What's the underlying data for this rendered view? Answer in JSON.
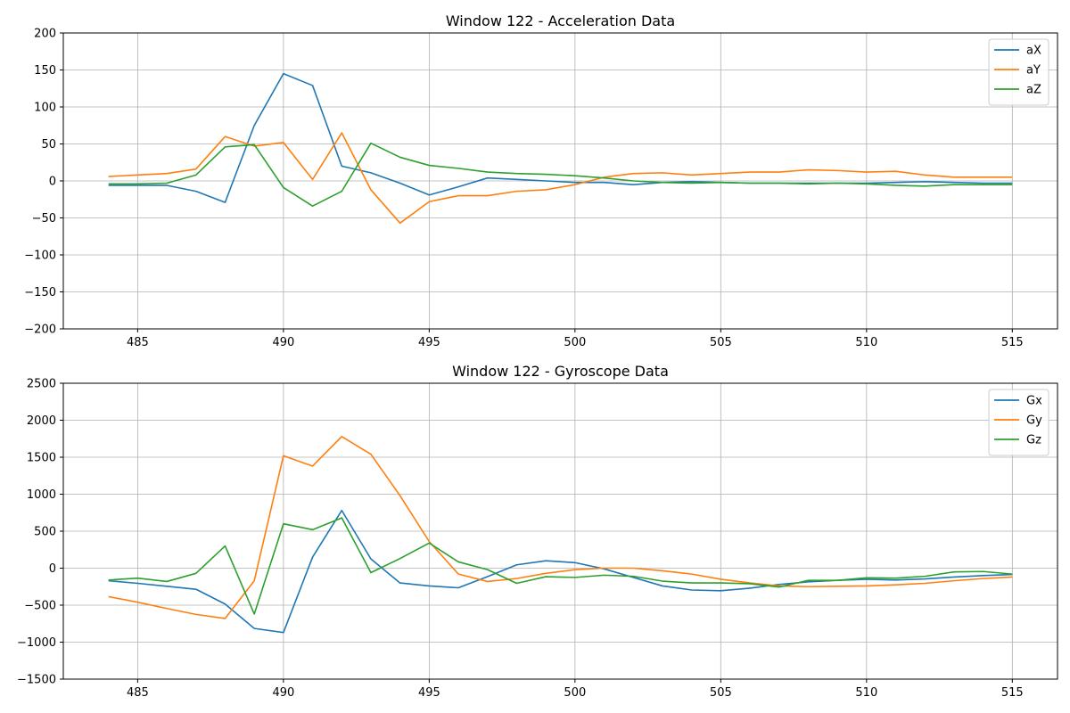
{
  "chart_data": [
    {
      "type": "line",
      "title": "Window 122 - Acceleration Data",
      "xlabel": "",
      "ylabel": "",
      "xlim": [
        482.45,
        516.55
      ],
      "ylim": [
        -200,
        200
      ],
      "xticks": [
        485,
        490,
        495,
        500,
        505,
        510,
        515
      ],
      "yticks": [
        -200,
        -150,
        -100,
        -50,
        0,
        50,
        100,
        150,
        200
      ],
      "ytick_labels": [
        "−200",
        "−150",
        "−100",
        "−50",
        "0",
        "50",
        "100",
        "150",
        "200"
      ],
      "grid": true,
      "legend_position": "top-right",
      "x": [
        484,
        485,
        486,
        487,
        488,
        489,
        490,
        491,
        492,
        493,
        494,
        495,
        496,
        497,
        498,
        499,
        500,
        501,
        502,
        503,
        504,
        505,
        506,
        507,
        508,
        509,
        510,
        511,
        512,
        513,
        514,
        515
      ],
      "series": [
        {
          "name": "aX",
          "color": "#1f77b4",
          "values": [
            -6,
            -6,
            -6,
            -14,
            -29,
            75,
            145,
            129,
            20,
            11,
            -3,
            -19,
            -8,
            4,
            2,
            0,
            -2,
            -2,
            -5,
            -2,
            -1,
            -2,
            -3,
            -3,
            -3,
            -3,
            -3,
            -2,
            -1,
            -2,
            -3,
            -3
          ]
        },
        {
          "name": "aY",
          "color": "#ff7f0e",
          "values": [
            6,
            8,
            10,
            16,
            60,
            47,
            52,
            2,
            65,
            -12,
            -57,
            -28,
            -20,
            -20,
            -14,
            -12,
            -5,
            5,
            10,
            11,
            8,
            10,
            12,
            12,
            15,
            14,
            12,
            13,
            8,
            5,
            5,
            5
          ]
        },
        {
          "name": "aZ",
          "color": "#2ca02c",
          "values": [
            -4,
            -4,
            -3,
            8,
            46,
            49,
            -9,
            -34,
            -14,
            51,
            32,
            21,
            17,
            12,
            10,
            9,
            7,
            4,
            0,
            -2,
            -3,
            -2,
            -3,
            -3,
            -4,
            -3,
            -4,
            -6,
            -7,
            -5,
            -5,
            -5
          ]
        }
      ]
    },
    {
      "type": "line",
      "title": "Window 122 - Gyroscope Data",
      "xlabel": "",
      "ylabel": "",
      "xlim": [
        482.45,
        516.55
      ],
      "ylim": [
        -1500,
        2500
      ],
      "xticks": [
        485,
        490,
        495,
        500,
        505,
        510,
        515
      ],
      "yticks": [
        -1500,
        -1000,
        -500,
        0,
        500,
        1000,
        1500,
        2000,
        2500
      ],
      "ytick_labels": [
        "−1500",
        "−1000",
        "−500",
        "0",
        "500",
        "1000",
        "1500",
        "2000",
        "2500"
      ],
      "grid": true,
      "legend_position": "top-right",
      "x": [
        484,
        485,
        486,
        487,
        488,
        489,
        490,
        491,
        492,
        493,
        494,
        495,
        496,
        497,
        498,
        499,
        500,
        501,
        502,
        503,
        504,
        505,
        506,
        507,
        508,
        509,
        510,
        511,
        512,
        513,
        514,
        515
      ],
      "series": [
        {
          "name": "Gx",
          "color": "#1f77b4",
          "values": [
            -170,
            -205,
            -245,
            -285,
            -485,
            -815,
            -870,
            150,
            780,
            125,
            -200,
            -240,
            -265,
            -115,
            45,
            100,
            75,
            -10,
            -125,
            -240,
            -295,
            -305,
            -270,
            -220,
            -185,
            -165,
            -150,
            -160,
            -145,
            -120,
            -100,
            -85
          ]
        },
        {
          "name": "Gy",
          "color": "#ff7f0e",
          "values": [
            -385,
            -460,
            -545,
            -625,
            -680,
            -170,
            1520,
            1380,
            1780,
            1540,
            980,
            360,
            -80,
            -180,
            -140,
            -70,
            -20,
            0,
            0,
            -35,
            -80,
            -150,
            -200,
            -240,
            -250,
            -245,
            -240,
            -225,
            -205,
            -170,
            -140,
            -120
          ]
        },
        {
          "name": "Gz",
          "color": "#2ca02c",
          "values": [
            -160,
            -135,
            -180,
            -70,
            300,
            -620,
            600,
            520,
            680,
            -60,
            130,
            340,
            85,
            -20,
            -205,
            -115,
            -125,
            -95,
            -110,
            -175,
            -200,
            -200,
            -210,
            -255,
            -165,
            -165,
            -130,
            -135,
            -110,
            -50,
            -45,
            -80
          ]
        }
      ]
    }
  ]
}
